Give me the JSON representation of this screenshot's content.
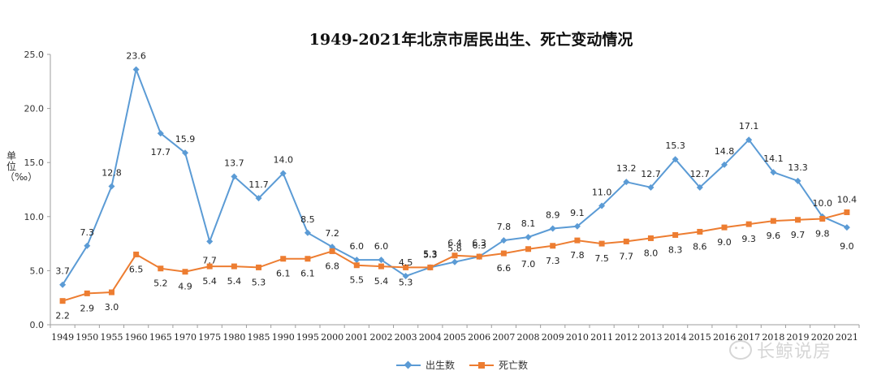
{
  "chart_data": {
    "type": "line",
    "title": "1949-2021年北京市居民出生、死亡变动情况",
    "ylabel": "单位（‰）",
    "xlabel": "",
    "categories": [
      "1949",
      "1950",
      "1955",
      "1960",
      "1965",
      "1970",
      "1975",
      "1980",
      "1985",
      "1990",
      "1995",
      "2000",
      "2001",
      "2002",
      "2003",
      "2004",
      "2005",
      "2006",
      "2007",
      "2008",
      "2009",
      "2010",
      "2011",
      "2012",
      "2013",
      "2014",
      "2015",
      "2016",
      "2017",
      "2018",
      "2019",
      "2020",
      "2021"
    ],
    "ylim": [
      0,
      25
    ],
    "yticks": [
      "0.0",
      "5.0",
      "10.0",
      "15.0",
      "20.0",
      "25.0"
    ],
    "grid": false,
    "legend_position": "bottom",
    "series": [
      {
        "name": "出生数",
        "color": "#5B9BD5",
        "marker": "diamond",
        "values": [
          3.7,
          7.3,
          12.8,
          23.6,
          17.7,
          15.9,
          7.7,
          13.7,
          11.7,
          14.0,
          8.5,
          7.2,
          6.0,
          6.0,
          4.5,
          5.3,
          5.8,
          6.3,
          7.8,
          8.1,
          8.9,
          9.1,
          11.0,
          13.2,
          12.7,
          15.3,
          12.7,
          14.8,
          17.1,
          14.1,
          13.3,
          10.0,
          9.0
        ],
        "labels": [
          "3.7",
          "7.3",
          "12.8",
          "23.6",
          "17.7",
          "15.9",
          "7.7",
          "13.7",
          "11.7",
          "14.0",
          "8.5",
          "7.2",
          "6.0",
          "6.0",
          "4.5",
          "5.3",
          "5.8",
          "6.3",
          "7.8",
          "8.1",
          "8.9",
          "9.1",
          "11.0",
          "13.2",
          "12.7",
          "15.3",
          "12.7",
          "14.8",
          "17.1",
          "14.1",
          "13.3",
          "10.0",
          "9.0"
        ]
      },
      {
        "name": "死亡数",
        "color": "#ED7D31",
        "marker": "square",
        "values": [
          2.2,
          2.9,
          3.0,
          6.5,
          5.2,
          4.9,
          5.4,
          5.4,
          5.3,
          6.1,
          6.1,
          6.8,
          5.5,
          5.4,
          5.3,
          5.3,
          6.4,
          6.3,
          6.6,
          7.0,
          7.3,
          7.8,
          7.5,
          7.7,
          8.0,
          8.3,
          8.6,
          9.0,
          9.3,
          9.6,
          9.7,
          9.8,
          10.4
        ],
        "labels": [
          "2.2",
          "2.9",
          "3.0",
          "6.5",
          "5.2",
          "4.9",
          "5.4",
          "5.4",
          "5.3",
          "6.1",
          "6.1",
          "6.8",
          "5.5",
          "5.4",
          "5.3",
          "5.3",
          "6.4",
          "6.3",
          "6.6",
          "7.0",
          "7.3",
          "7.8",
          "7.5",
          "7.7",
          "8.0",
          "8.3",
          "8.6",
          "9.0",
          "9.3",
          "9.6",
          "9.7",
          "9.8",
          "10.4"
        ]
      }
    ]
  },
  "watermark": {
    "text": "长鲸说房",
    "icon": "wechat-icon"
  }
}
